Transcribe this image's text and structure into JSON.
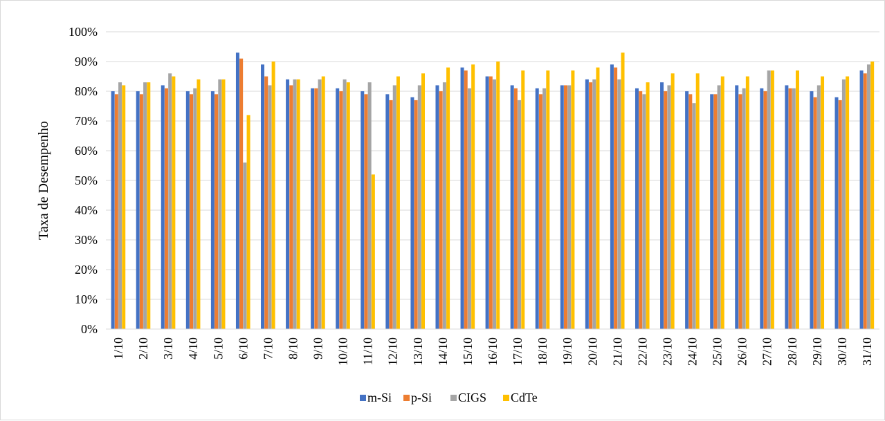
{
  "chart_data": {
    "type": "bar",
    "ylabel": "Taxa de Desempenho",
    "xlabel": "",
    "ylim": [
      0,
      1
    ],
    "ytick_labels": [
      "0%",
      "10%",
      "20%",
      "30%",
      "40%",
      "50%",
      "60%",
      "70%",
      "80%",
      "90%",
      "100%"
    ],
    "grid": true,
    "legend_position": "bottom",
    "categories": [
      "1/10",
      "2/10",
      "3/10",
      "4/10",
      "5/10",
      "6/10",
      "7/10",
      "8/10",
      "9/10",
      "10/10",
      "11/10",
      "12/10",
      "13/10",
      "14/10",
      "15/10",
      "16/10",
      "17/10",
      "18/10",
      "19/10",
      "20/10",
      "21/10",
      "22/10",
      "23/10",
      "24/10",
      "25/10",
      "26/10",
      "27/10",
      "28/10",
      "29/10",
      "30/10",
      "31/10"
    ],
    "series": [
      {
        "name": "m-Si",
        "color": "#4472c4",
        "values": [
          0.8,
          0.8,
          0.82,
          0.8,
          0.8,
          0.93,
          0.89,
          0.84,
          0.81,
          0.81,
          0.8,
          0.79,
          0.78,
          0.82,
          0.88,
          0.85,
          0.82,
          0.81,
          0.82,
          0.84,
          0.89,
          0.81,
          0.83,
          0.8,
          0.79,
          0.82,
          0.81,
          0.82,
          0.8,
          0.78,
          0.87
        ]
      },
      {
        "name": "p-Si",
        "color": "#ed7d31",
        "values": [
          0.79,
          0.79,
          0.81,
          0.79,
          0.79,
          0.91,
          0.85,
          0.82,
          0.81,
          0.8,
          0.79,
          0.77,
          0.77,
          0.8,
          0.87,
          0.85,
          0.81,
          0.79,
          0.82,
          0.83,
          0.88,
          0.8,
          0.8,
          0.79,
          0.79,
          0.79,
          0.8,
          0.81,
          0.78,
          0.77,
          0.86
        ]
      },
      {
        "name": "CIGS",
        "color": "#a5a5a5",
        "values": [
          0.83,
          0.83,
          0.86,
          0.81,
          0.84,
          0.56,
          0.82,
          0.84,
          0.84,
          0.84,
          0.83,
          0.82,
          0.82,
          0.83,
          0.81,
          0.84,
          0.77,
          0.81,
          0.82,
          0.84,
          0.84,
          0.79,
          0.82,
          0.76,
          0.82,
          0.81,
          0.87,
          0.81,
          0.82,
          0.84,
          0.89
        ]
      },
      {
        "name": "CdTe",
        "color": "#ffc000",
        "values": [
          0.82,
          0.83,
          0.85,
          0.84,
          0.84,
          0.72,
          0.9,
          0.84,
          0.85,
          0.83,
          0.52,
          0.85,
          0.86,
          0.88,
          0.89,
          0.9,
          0.87,
          0.87,
          0.87,
          0.88,
          0.93,
          0.83,
          0.86,
          0.86,
          0.85,
          0.85,
          0.87,
          0.87,
          0.85,
          0.85,
          0.9
        ]
      }
    ]
  }
}
